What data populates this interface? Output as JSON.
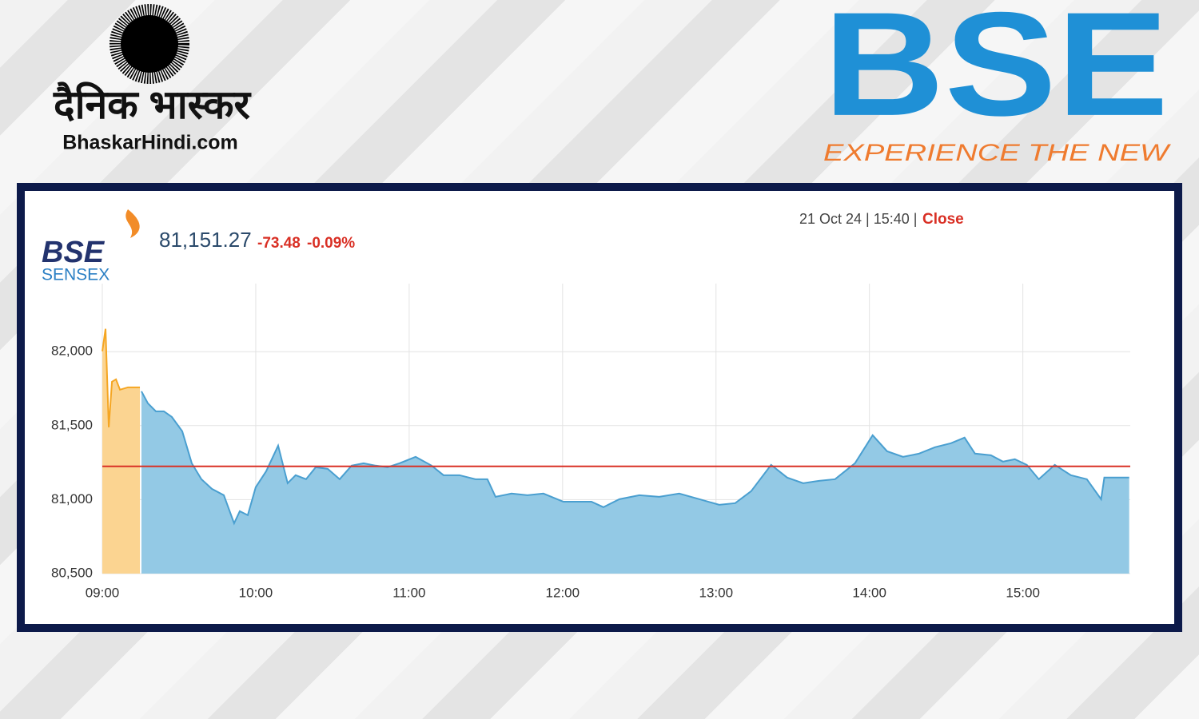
{
  "header": {
    "brand_hindi": "दैनिक भास्कर",
    "brand_site": "BhaskarHindi.com",
    "logo_text": "BSE",
    "logo_tagline": "EXPERIENCE THE NEW"
  },
  "chart_data": {
    "type": "area",
    "index_logo": "BSE",
    "index_name": "SENSEX",
    "index_value": "81,151.27",
    "change": "-73.48",
    "change_percent": "-0.09%",
    "timestamp": "21 Oct 24 | 15:40 |",
    "status": "Close",
    "xlim": [
      9,
      15.7
    ],
    "ylim": [
      80500,
      82460
    ],
    "xticks": [
      {
        "value": 9,
        "label": "09:00"
      },
      {
        "value": 10,
        "label": "10:00"
      },
      {
        "value": 11,
        "label": "11:00"
      },
      {
        "value": 12,
        "label": "12:00"
      },
      {
        "value": 13,
        "label": "13:00"
      },
      {
        "value": 14,
        "label": "14:00"
      },
      {
        "value": 15,
        "label": "15:00"
      }
    ],
    "yticks": [
      {
        "value": 80500,
        "label": "80,500"
      },
      {
        "value": 81000,
        "label": "81,000"
      },
      {
        "value": 81500,
        "label": "81,500"
      },
      {
        "value": 82000,
        "label": "82,000"
      }
    ],
    "grid": true,
    "reference_line": 81224.75,
    "reference_color": "#d93025",
    "series": [
      {
        "color": "#f5a623",
        "fill": "#fbd491",
        "x": [
          9.0,
          9.021,
          9.042,
          9.063,
          9.089,
          9.115,
          9.167,
          9.245
        ],
        "values": [
          82003,
          82154,
          81489,
          81797,
          81813,
          81743,
          81759,
          81759
        ]
      },
      {
        "color": "#4a9fd0",
        "fill": "#93c9e5",
        "x": [
          9.255,
          9.297,
          9.349,
          9.401,
          9.453,
          9.521,
          9.583,
          9.646,
          9.714,
          9.792,
          9.859,
          9.896,
          9.948,
          10.0,
          10.068,
          10.146,
          10.208,
          10.26,
          10.328,
          10.391,
          10.469,
          10.547,
          10.625,
          10.703,
          10.781,
          10.859,
          10.938,
          11.042,
          11.146,
          11.224,
          11.328,
          11.432,
          11.51,
          11.563,
          11.667,
          11.771,
          11.875,
          12.005,
          12.109,
          12.188,
          12.266,
          12.37,
          12.5,
          12.63,
          12.76,
          12.891,
          13.021,
          13.125,
          13.229,
          13.359,
          13.464,
          13.568,
          13.672,
          13.776,
          13.906,
          14.021,
          14.115,
          14.219,
          14.323,
          14.427,
          14.531,
          14.62,
          14.688,
          14.792,
          14.87,
          14.948,
          15.026,
          15.104,
          15.208,
          15.313,
          15.417,
          15.51,
          15.531,
          15.693
        ],
        "values": [
          81732,
          81651,
          81597,
          81597,
          81559,
          81462,
          81246,
          81138,
          81073,
          81030,
          80840,
          80922,
          80895,
          81084,
          81192,
          81365,
          81111,
          81165,
          81138,
          81219,
          81208,
          81138,
          81230,
          81246,
          81230,
          81219,
          81246,
          81289,
          81230,
          81165,
          81165,
          81138,
          81138,
          81019,
          81041,
          81030,
          81041,
          80986,
          80986,
          80986,
          80949,
          81003,
          81030,
          81019,
          81041,
          81003,
          80965,
          80976,
          81057,
          81235,
          81149,
          81111,
          81127,
          81138,
          81246,
          81435,
          81327,
          81289,
          81311,
          81354,
          81381,
          81419,
          81311,
          81300,
          81257,
          81273,
          81235,
          81138,
          81235,
          81165,
          81138,
          81003,
          81149,
          81149
        ]
      }
    ]
  }
}
